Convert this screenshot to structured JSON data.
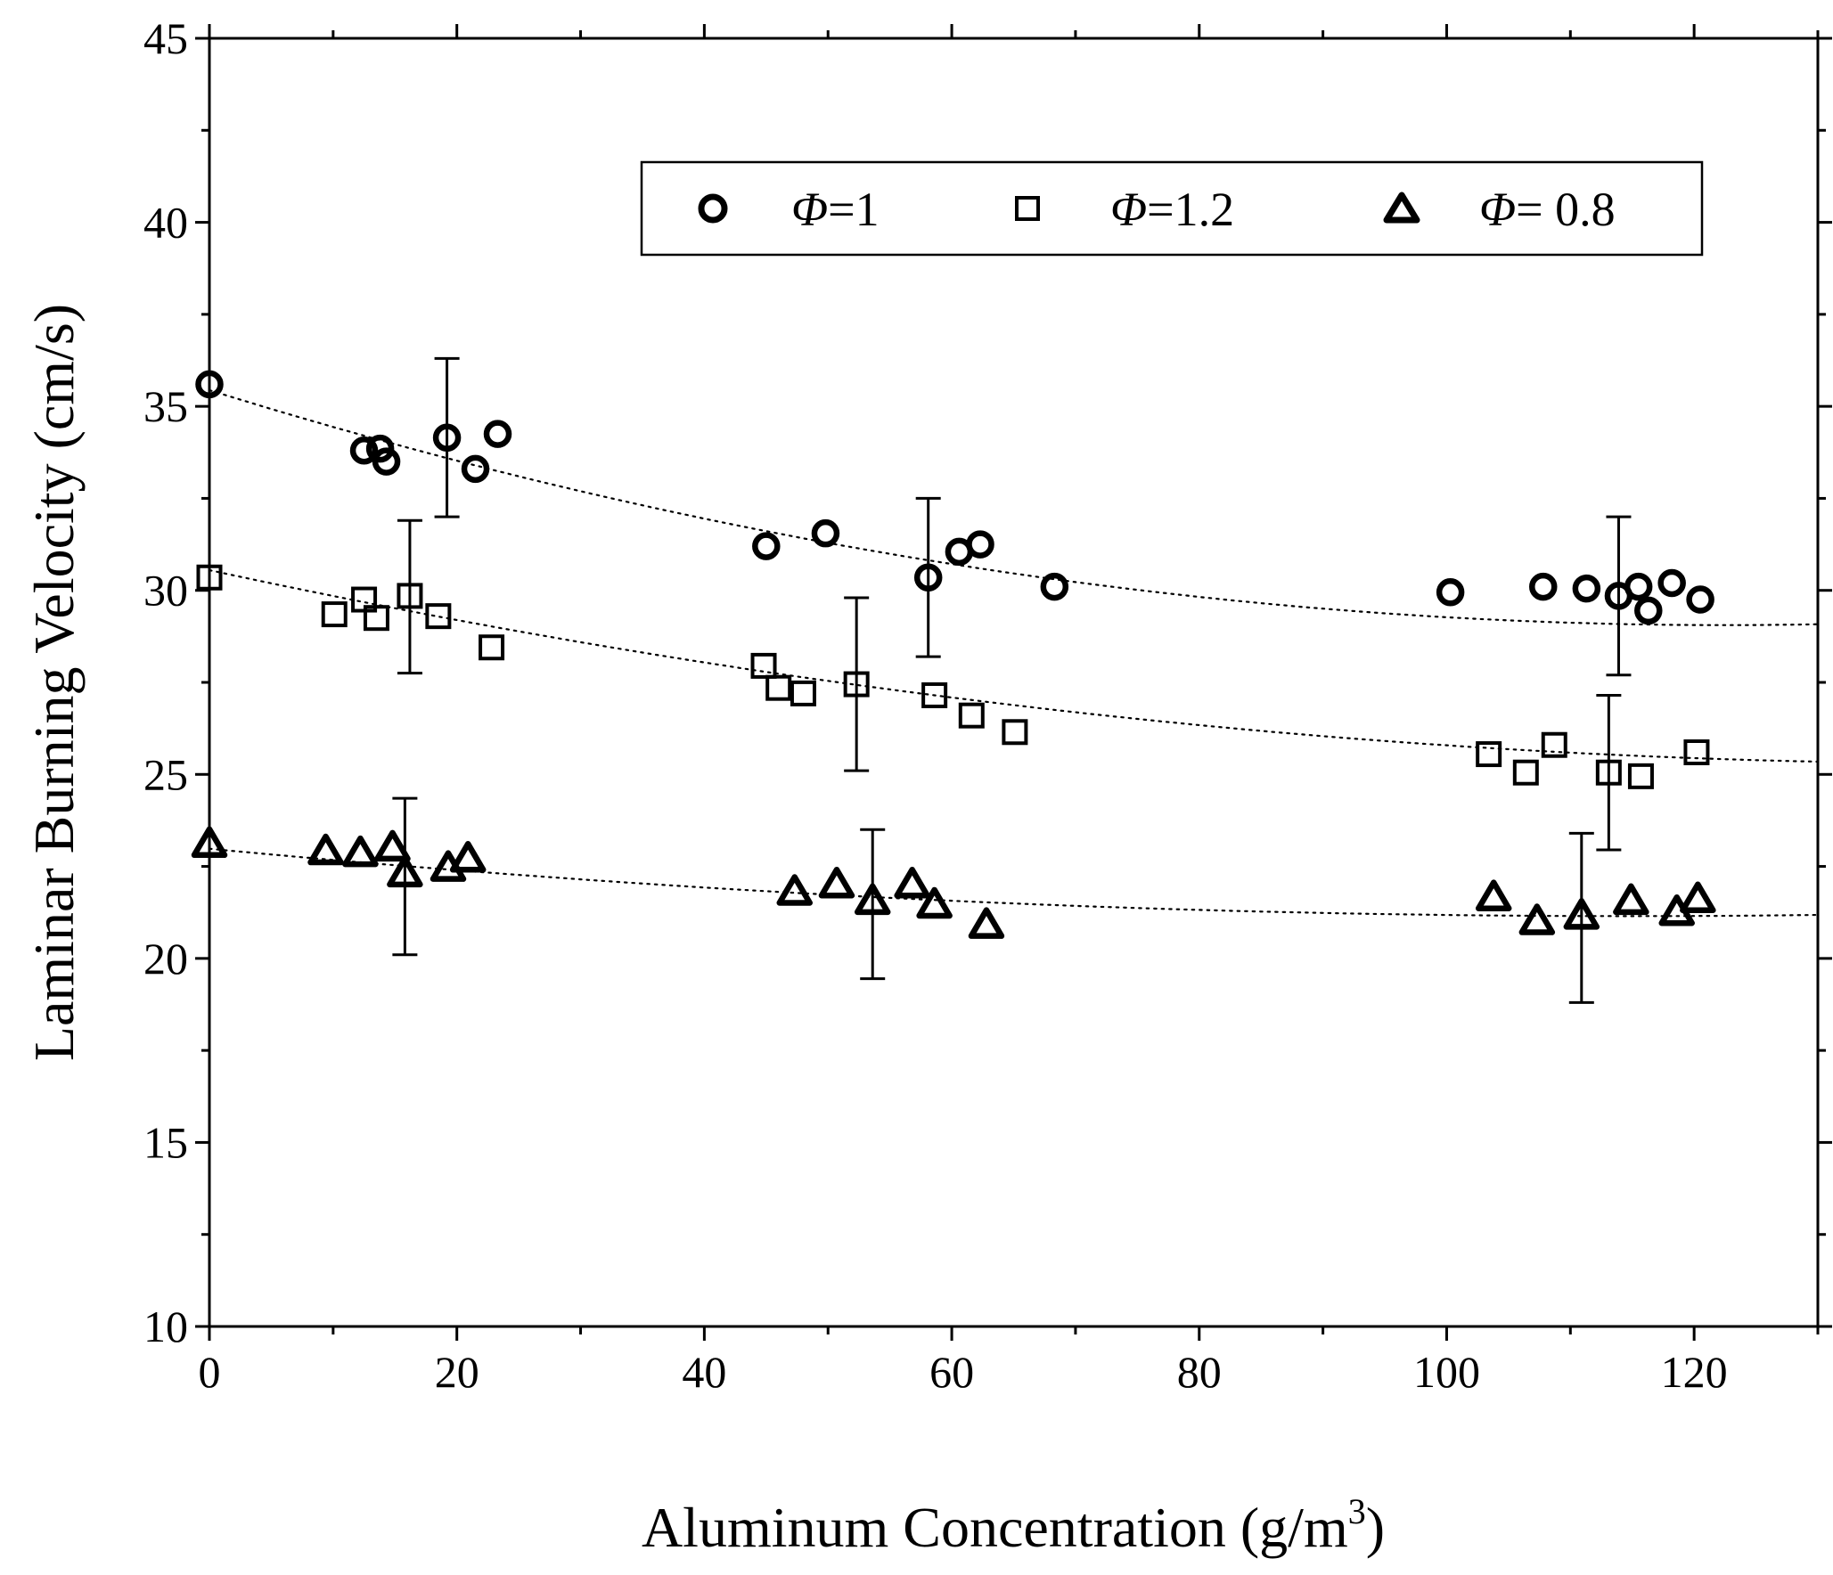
{
  "chart_data": {
    "type": "scatter",
    "xlabel": "Aluminum Concentration (g/m",
    "xlabel_sup": "3",
    "xlabel_end": ")",
    "ylabel": "Laminar Burning Velocity (cm/s)",
    "xlim": [
      0,
      130
    ],
    "ylim": [
      10,
      45
    ],
    "xticks": [
      0,
      20,
      40,
      60,
      80,
      100,
      120
    ],
    "xtick_labels": [
      "0",
      "20",
      "40",
      "60",
      "80",
      "100",
      "120"
    ],
    "yticks": [
      10,
      15,
      20,
      25,
      30,
      35,
      40,
      45
    ],
    "ytick_labels": [
      "10",
      "15",
      "20",
      "25",
      "30",
      "35",
      "40",
      "45"
    ],
    "legend_position": "top-right",
    "legend_symbol": "Φ",
    "series": [
      {
        "name": "Φ=1",
        "legend_value": "=1",
        "marker": "circle",
        "x": [
          0,
          12.5,
          13.8,
          14.3,
          19.2,
          21.5,
          23.3,
          45.0,
          49.8,
          58.1,
          60.6,
          62.3,
          68.3,
          100.3,
          107.8,
          111.3,
          113.9,
          115.5,
          116.3,
          118.2,
          120.5
        ],
        "y": [
          35.6,
          33.8,
          33.85,
          33.5,
          34.15,
          33.3,
          34.25,
          31.2,
          31.55,
          30.35,
          31.05,
          31.25,
          30.1,
          29.95,
          30.1,
          30.05,
          29.85,
          30.1,
          29.45,
          30.2,
          29.75
        ],
        "error_bars": [
          {
            "x": 19.2,
            "y": 34.15,
            "low": 32.0,
            "high": 36.3
          },
          {
            "x": 58.1,
            "y": 30.35,
            "low": 28.2,
            "high": 32.5
          },
          {
            "x": 113.9,
            "y": 29.85,
            "low": 27.7,
            "high": 32.0
          }
        ],
        "fit": {
          "a": 35.44,
          "b": -0.1043,
          "c": 0.000426
        }
      },
      {
        "name": "Φ=1.2",
        "legend_value": "=1.2",
        "marker": "square",
        "x": [
          0,
          10.1,
          12.5,
          13.5,
          16.2,
          18.5,
          22.8,
          44.8,
          46.0,
          48.0,
          52.3,
          58.6,
          61.6,
          65.1,
          103.4,
          106.4,
          108.7,
          113.1,
          115.7,
          120.2
        ],
        "y": [
          30.35,
          29.35,
          29.75,
          29.25,
          29.85,
          29.3,
          28.45,
          27.95,
          27.35,
          27.2,
          27.45,
          27.15,
          26.6,
          26.15,
          25.55,
          25.05,
          25.8,
          25.05,
          24.95,
          25.6
        ],
        "error_bars": [
          {
            "x": 16.2,
            "y": 29.85,
            "low": 27.75,
            "high": 31.9
          },
          {
            "x": 52.3,
            "y": 27.45,
            "low": 25.1,
            "high": 29.8
          },
          {
            "x": 113.1,
            "y": 25.05,
            "low": 22.95,
            "high": 27.15
          }
        ],
        "fit": {
          "a": 30.55,
          "b": -0.0728,
          "c": 0.000252
        }
      },
      {
        "name": "Φ= 0.8",
        "legend_value": "= 0.8",
        "marker": "triangle",
        "x": [
          0,
          9.4,
          12.2,
          14.8,
          15.8,
          19.3,
          20.9,
          47.3,
          50.7,
          53.6,
          56.8,
          58.6,
          62.8,
          103.8,
          107.3,
          110.9,
          114.9,
          118.6,
          120.3
        ],
        "y": [
          23.1,
          22.9,
          22.85,
          23.0,
          22.3,
          22.45,
          22.7,
          21.8,
          22.0,
          21.55,
          22.0,
          21.45,
          20.9,
          21.65,
          21.0,
          21.15,
          21.55,
          21.25,
          21.6
        ],
        "error_bars": [
          {
            "x": 15.8,
            "y": 22.3,
            "low": 20.1,
            "high": 24.35
          },
          {
            "x": 53.6,
            "y": 21.55,
            "low": 19.45,
            "high": 23.5
          },
          {
            "x": 110.9,
            "y": 21.15,
            "low": 18.8,
            "high": 23.4
          }
        ],
        "fit": {
          "a": 22.98,
          "b": -0.0319,
          "c": 0.000139
        }
      }
    ]
  }
}
